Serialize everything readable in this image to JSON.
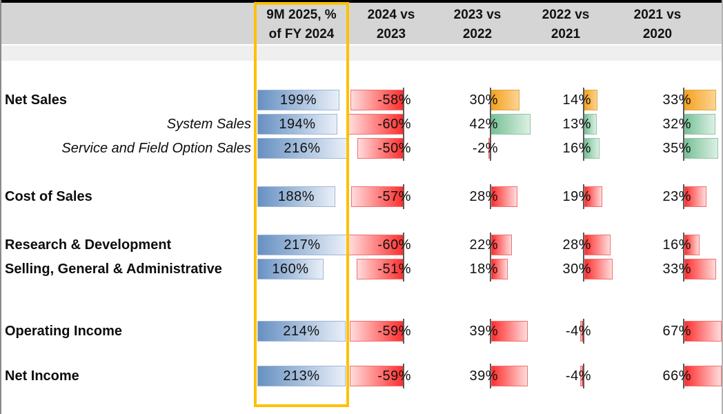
{
  "header": {
    "columns": [
      {
        "line1": "9M 2025, %",
        "line2": "of FY 2024"
      },
      {
        "line1": "2024 vs",
        "line2": "2023"
      },
      {
        "line1": "2023 vs",
        "line2": "2022"
      },
      {
        "line1": "2022 vs",
        "line2": "2021"
      },
      {
        "line1": "2021 vs",
        "line2": "2020"
      }
    ]
  },
  "chart_data": {
    "type": "bar",
    "subtype": "table-of-data-bars",
    "unit": "%",
    "columns": [
      "9M 2025, % of FY 2024",
      "2024 vs 2023",
      "2023 vs 2022",
      "2022 vs 2021",
      "2021 vs 2020"
    ],
    "highlighted_column": "9M 2025, % of FY 2024",
    "rows": [
      {
        "label": "Net Sales",
        "emphasis": "bold",
        "values": [
          199,
          -58,
          30,
          14,
          33
        ],
        "colors": [
          "blue",
          "red",
          "orange",
          "orange",
          "orange"
        ]
      },
      {
        "label": "System Sales",
        "emphasis": "italic",
        "values": [
          194,
          -60,
          42,
          13,
          32
        ],
        "colors": [
          "blue",
          "red",
          "green",
          "green",
          "green"
        ]
      },
      {
        "label": "Service and Field Option Sales",
        "emphasis": "italic",
        "values": [
          216,
          -50,
          -2,
          16,
          35
        ],
        "colors": [
          "blue",
          "red",
          "red",
          "green",
          "green"
        ]
      },
      {
        "label": "Cost of Sales",
        "emphasis": "bold",
        "values": [
          188,
          -57,
          28,
          19,
          23
        ],
        "colors": [
          "blue",
          "red",
          "red",
          "red",
          "red"
        ]
      },
      {
        "label": "Research & Development",
        "emphasis": "bold",
        "values": [
          217,
          -60,
          22,
          28,
          16
        ],
        "colors": [
          "blue",
          "red",
          "red",
          "red",
          "red"
        ]
      },
      {
        "label": "Selling, General & Administrative",
        "emphasis": "bold",
        "values": [
          160,
          -51,
          18,
          30,
          33
        ],
        "colors": [
          "blue",
          "red",
          "red",
          "red",
          "red"
        ]
      },
      {
        "label": "Operating Income",
        "emphasis": "bold",
        "values": [
          214,
          -59,
          39,
          -4,
          67
        ],
        "colors": [
          "blue",
          "red",
          "red",
          "red",
          "red"
        ]
      },
      {
        "label": "Net Income",
        "emphasis": "bold",
        "values": [
          213,
          -59,
          39,
          -4,
          66
        ],
        "colors": [
          "blue",
          "red",
          "red",
          "red",
          "red"
        ]
      }
    ]
  },
  "colors": {
    "highlight_frame": "#FFC000",
    "header_band": "#D5D5D5",
    "subheader_band": "#EFEFEF",
    "tick": "#595959",
    "blue_strong": "#6690C2",
    "blue_light": "#E9EFF8",
    "blue_border": "#9FB6D8",
    "red_strong": "#FF2E2E",
    "red_light": "#FFDCDC",
    "red_border": "#F07070",
    "orange_strong": "#F5A21F",
    "orange_light": "#FBD493",
    "orange_border": "#DFA63F",
    "green_strong": "#77C197",
    "green_light": "#DCF0E4",
    "green_border": "#92C4A8"
  }
}
